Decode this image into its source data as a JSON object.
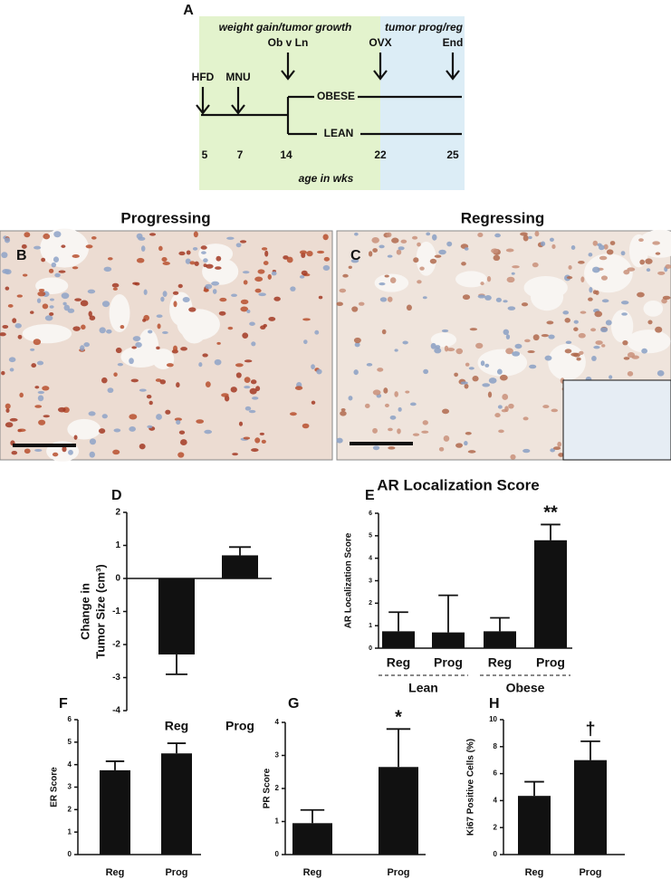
{
  "timeline": {
    "label": "A",
    "phases": [
      "weight gain/tumor growth",
      "tumor prog/reg"
    ],
    "events": [
      "HFD",
      "MNU",
      "Ob v Ln",
      "OVX",
      "End"
    ],
    "branches": [
      "OBESE",
      "LEAN"
    ],
    "ages": [
      5,
      7,
      14,
      22,
      25
    ],
    "axis_label": "age in wks"
  },
  "micrographs": [
    {
      "label": "B",
      "title": "Progressing"
    },
    {
      "label": "C",
      "title": "Regressing"
    }
  ],
  "chart_data": [
    {
      "type": "bar",
      "panel": "D",
      "ylabel": [
        "Change in",
        "Tumor Size (cm³)"
      ],
      "categories": [
        "Reg",
        "Prog"
      ],
      "values": [
        -2.3,
        0.7
      ],
      "errors": [
        0.6,
        0.25
      ],
      "color": "#111111",
      "ylim": [
        -4,
        2
      ],
      "yticks": [
        -4,
        -3,
        -2,
        -1,
        0,
        1,
        2
      ]
    },
    {
      "type": "bar",
      "panel": "E",
      "title": "AR Localization Score",
      "ylabel": "AR Localization Score",
      "categories": [
        "Reg",
        "Prog",
        "Reg",
        "Prog"
      ],
      "groups": [
        "Lean",
        "Obese"
      ],
      "values": [
        0.75,
        0.7,
        0.75,
        4.8
      ],
      "errors": [
        0.85,
        1.65,
        0.6,
        0.7
      ],
      "significance": [
        null,
        null,
        null,
        "**"
      ],
      "color": "#111111",
      "ylim": [
        0,
        6
      ],
      "yticks": [
        0,
        1,
        2,
        3,
        4,
        5,
        6
      ]
    },
    {
      "type": "bar",
      "panel": "F",
      "ylabel": "ER Score",
      "categories": [
        "Reg",
        "Prog"
      ],
      "values": [
        3.75,
        4.5
      ],
      "errors": [
        0.4,
        0.45
      ],
      "color": "#111111",
      "ylim": [
        0,
        6
      ],
      "yticks": [
        0,
        1,
        2,
        3,
        4,
        5,
        6
      ]
    },
    {
      "type": "bar",
      "panel": "G",
      "ylabel": "PR Score",
      "categories": [
        "Reg",
        "Prog"
      ],
      "values": [
        0.95,
        2.65
      ],
      "errors": [
        0.4,
        1.15
      ],
      "significance": [
        null,
        "*"
      ],
      "color": "#111111",
      "ylim": [
        0,
        4
      ],
      "yticks": [
        0,
        1,
        2,
        3,
        4
      ]
    },
    {
      "type": "bar",
      "panel": "H",
      "ylabel": "Ki67 Positive Cells (%)",
      "categories": [
        "Reg",
        "Prog"
      ],
      "values": [
        4.35,
        7.0
      ],
      "errors": [
        1.05,
        1.4
      ],
      "significance": [
        null,
        "†"
      ],
      "color": "#111111",
      "ylim": [
        0,
        10
      ],
      "yticks": [
        0,
        2,
        4,
        6,
        8,
        10
      ]
    }
  ]
}
